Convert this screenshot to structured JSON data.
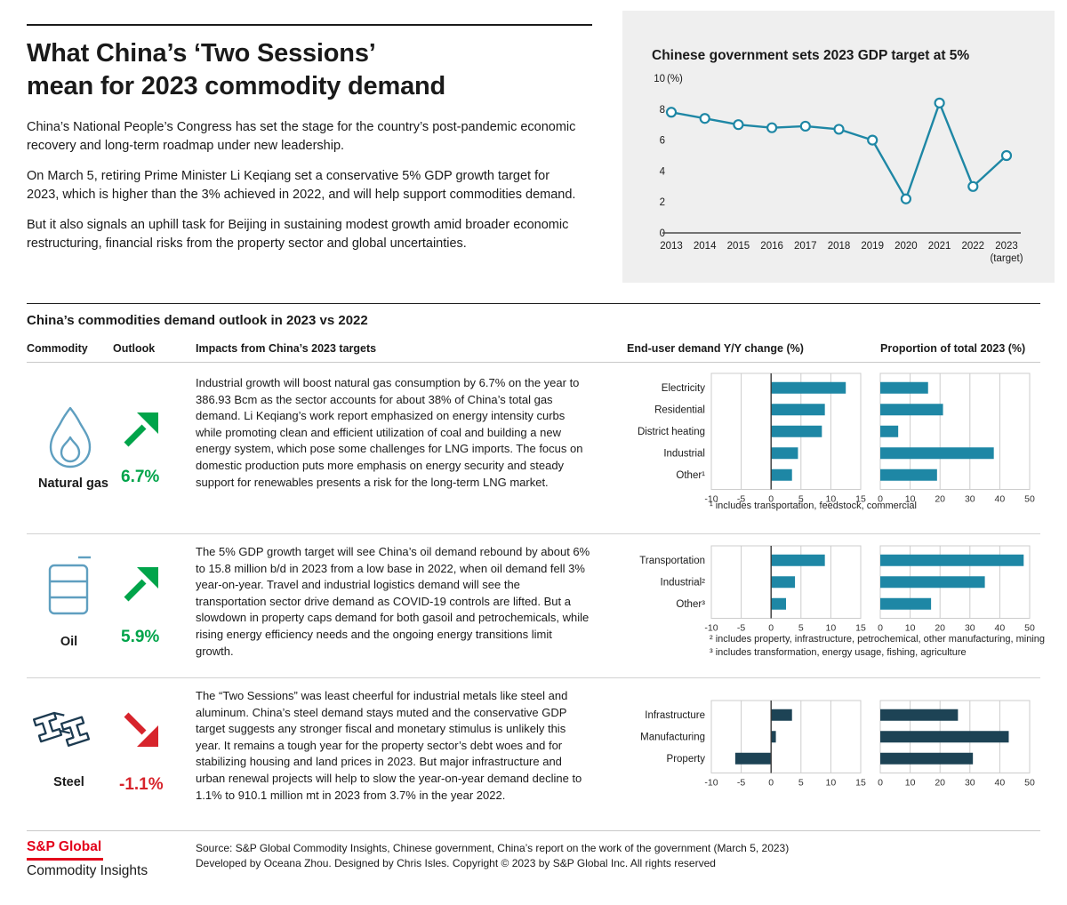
{
  "colors": {
    "teal": "#1e87a5",
    "navy": "#1d4355",
    "green": "#00a44a",
    "red": "#d7242c",
    "sp_red": "#e3001b",
    "panel_bg": "#efefef",
    "icon_blue": "#5f9fc0",
    "steel_icon": "#1c3a50"
  },
  "header": {
    "title_lines": [
      "What China’s ‘Two Sessions’",
      "mean for 2023 commodity demand"
    ],
    "paragraphs": [
      "China’s National People’s Congress has set the stage for the country’s post-pandemic economic recovery and long-term roadmap under new leadership.",
      "On March 5, retiring Prime Minister Li Keqiang set a conservative 5% GDP growth target for 2023, which is higher than the 3% achieved in 2022, and will help support commodities demand.",
      "But it also signals an uphill task for Beijing in sustaining modest growth amid broader economic restructuring, financial risks from the property sector and global uncertainties."
    ]
  },
  "gdp_panel": {
    "title": "Chinese government sets 2023 GDP target at 5%"
  },
  "outlook_section": {
    "title": "China’s commodities demand outlook in 2023 vs 2022",
    "columns": {
      "commodity": "Commodity",
      "outlook": "Outlook",
      "impacts": "Impacts from China’s 2023 targets",
      "yy": "End-user demand Y/Y change (%)",
      "prop": "Proportion of total 2023 (%)"
    }
  },
  "rows": [
    {
      "name": "Natural gas",
      "outlook_value": "6.7%",
      "trend": "up",
      "impacts": "Industrial growth will boost natural gas consumption by 6.7% on the year to 386.93 Bcm as the sector accounts for about 38% of China’s total gas demand. Li Keqiang’s work report emphasized on energy intensity curbs while promoting clean and efficient utilization of coal and building a new energy system, which pose some challenges for LNG imports. The focus on domestic production puts more emphasis on energy security and steady support for renewables presents a risk for the long-term LNG market.",
      "footnotes": [
        "¹ includes transportation, feedstock, commercial"
      ]
    },
    {
      "name": "Oil",
      "outlook_value": "5.9%",
      "trend": "up",
      "impacts": "The 5% GDP growth target will see China’s oil demand rebound by about 6% to 15.8 million b/d in 2023 from a low base in 2022, when oil demand fell 3% year-on-year. Travel and industrial logistics demand will see the transportation sector drive demand as COVID-19 controls are lifted. But a slowdown in property caps demand for both gasoil and petrochemicals, while rising energy efficiency needs and the ongoing energy transitions limit growth.",
      "footnotes": [
        "² includes property, infrastructure, petrochemical, other manufacturing, mining",
        "³ includes transformation, energy usage, fishing, agriculture"
      ]
    },
    {
      "name": "Steel",
      "outlook_value": "-1.1%",
      "trend": "down",
      "impacts": "The “Two Sessions” was least cheerful for industrial metals like steel and aluminum. China’s steel demand stays muted and the conservative GDP target suggests any stronger fiscal and monetary stimulus is unlikely this year. It remains a tough year for the property sector’s debt woes and for stabilizing housing and land prices in 2023. But major infrastructure and urban renewal projects will help to slow the year-on-year demand decline to 1.1% to 910.1 million mt in 2023 from 3.7% in the year 2022.",
      "footnotes": []
    }
  ],
  "footer": {
    "logo_line1": "S&P Global",
    "logo_line2": "Commodity Insights",
    "source_line1": "Source: S&P Global Commodity Insights, Chinese government, China’s report on the work of the government (March 5, 2023)",
    "source_line2": "Developed by Oceana Zhou. Designed by Chris Isles. Copyright © 2023 by S&P Global Inc. All rights reserved"
  },
  "chart_data": [
    {
      "id": "gdp",
      "type": "line",
      "title": "Chinese government sets 2023 GDP target at 5%",
      "x": [
        "2013",
        "2014",
        "2015",
        "2016",
        "2017",
        "2018",
        "2019",
        "2020",
        "2021",
        "2022",
        "2023"
      ],
      "x_note": "(target)",
      "values": [
        7.8,
        7.4,
        7.0,
        6.8,
        6.9,
        6.7,
        6.0,
        2.2,
        8.4,
        3.0,
        5.0
      ],
      "ylim": [
        0,
        10
      ],
      "yticks": [
        0,
        2,
        4,
        6,
        8,
        10
      ],
      "ylabel": "(%)",
      "color": "#1e87a5"
    },
    {
      "id": "gas_yy",
      "type": "bar",
      "orientation": "horizontal",
      "title": "End-user demand Y/Y change (%)",
      "categories": [
        "Electricity",
        "Residential",
        "District heating",
        "Industrial",
        "Other¹"
      ],
      "values": [
        12.5,
        9,
        8.5,
        4.5,
        3.5
      ],
      "xlim": [
        -10,
        15
      ],
      "xticks": [
        -10,
        -5,
        0,
        5,
        10,
        15
      ],
      "color": "#1e87a5"
    },
    {
      "id": "gas_prop",
      "type": "bar",
      "orientation": "horizontal",
      "title": "Proportion of total 2023 (%)",
      "categories": [
        "Electricity",
        "Residential",
        "District heating",
        "Industrial",
        "Other¹"
      ],
      "values": [
        16,
        21,
        6,
        38,
        19
      ],
      "xlim": [
        0,
        50
      ],
      "xticks": [
        0,
        10,
        20,
        30,
        40,
        50
      ],
      "color": "#1e87a5"
    },
    {
      "id": "oil_yy",
      "type": "bar",
      "orientation": "horizontal",
      "title": "End-user demand Y/Y change (%)",
      "categories": [
        "Transportation",
        "Industrial²",
        "Other³"
      ],
      "values": [
        9,
        4,
        2.5
      ],
      "xlim": [
        -10,
        15
      ],
      "xticks": [
        -10,
        -5,
        0,
        5,
        10,
        15
      ],
      "color": "#1e87a5"
    },
    {
      "id": "oil_prop",
      "type": "bar",
      "orientation": "horizontal",
      "title": "Proportion of total 2023 (%)",
      "categories": [
        "Transportation",
        "Industrial²",
        "Other³"
      ],
      "values": [
        48,
        35,
        17
      ],
      "xlim": [
        0,
        50
      ],
      "xticks": [
        0,
        10,
        20,
        30,
        40,
        50
      ],
      "color": "#1e87a5"
    },
    {
      "id": "steel_yy",
      "type": "bar",
      "orientation": "horizontal",
      "title": "End-user demand Y/Y change (%)",
      "categories": [
        "Infrastructure",
        "Manufacturing",
        "Property"
      ],
      "values": [
        3.5,
        0.8,
        -6
      ],
      "xlim": [
        -10,
        15
      ],
      "xticks": [
        -10,
        -5,
        0,
        5,
        10,
        15
      ],
      "color": "#1d4355"
    },
    {
      "id": "steel_prop",
      "type": "bar",
      "orientation": "horizontal",
      "title": "Proportion of total 2023 (%)",
      "categories": [
        "Infrastructure",
        "Manufacturing",
        "Property"
      ],
      "values": [
        26,
        43,
        31
      ],
      "xlim": [
        0,
        50
      ],
      "xticks": [
        0,
        10,
        20,
        30,
        40,
        50
      ],
      "color": "#1d4355"
    }
  ]
}
